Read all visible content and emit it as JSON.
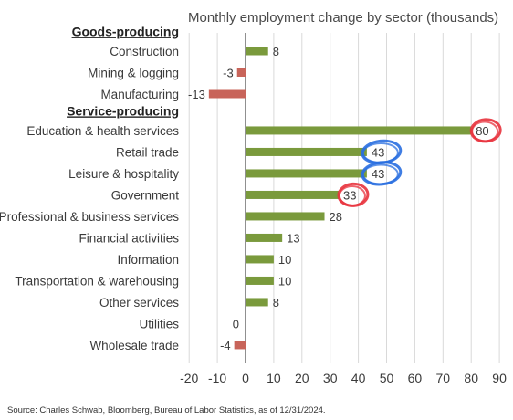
{
  "chart_data": {
    "type": "bar",
    "orientation": "horizontal",
    "title": "Monthly employment change by sector (thousands)",
    "source": "Source: Charles Schwab, Bloomberg, Bureau of Labor Statistics, as of 12/31/2024.",
    "xlim": [
      -20,
      90
    ],
    "x_ticks": [
      -20,
      -10,
      0,
      10,
      20,
      30,
      40,
      50,
      60,
      70,
      80,
      90
    ],
    "grid": "vertical",
    "groups": [
      {
        "label": "Goods-producing",
        "categories": [
          {
            "name": "Construction",
            "value": 8
          },
          {
            "name": "Mining & logging",
            "value": -3
          },
          {
            "name": "Manufacturing",
            "value": -13
          }
        ]
      },
      {
        "label": "Service-producing",
        "categories": [
          {
            "name": "Education & health services",
            "value": 80
          },
          {
            "name": "Retail trade",
            "value": 43
          },
          {
            "name": "Leisure & hospitality",
            "value": 43
          },
          {
            "name": "Government",
            "value": 33
          },
          {
            "name": "Professional & business services",
            "value": 28
          },
          {
            "name": "Financial activities",
            "value": 13
          },
          {
            "name": "Information",
            "value": 10
          },
          {
            "name": "Transportation & warehousing",
            "value": 10
          },
          {
            "name": "Other services",
            "value": 8
          },
          {
            "name": "Utilities",
            "value": 0
          },
          {
            "name": "Wholesale trade",
            "value": -4
          }
        ]
      }
    ],
    "colors": {
      "positive": "#7a9a3c",
      "negative": "#c8645a",
      "grid": "#d9d9d9",
      "annotation_red": "#e8323c",
      "annotation_blue": "#2a6fe0"
    },
    "annotations": [
      {
        "type": "hand-drawn-circle",
        "color": "red",
        "value": 80,
        "category": "Education & health services"
      },
      {
        "type": "hand-drawn-circle",
        "color": "blue",
        "value": 43,
        "category": "Retail trade"
      },
      {
        "type": "hand-drawn-circle",
        "color": "blue",
        "value": 43,
        "category": "Leisure & hospitality"
      },
      {
        "type": "hand-drawn-circle",
        "color": "red",
        "value": 33,
        "category": "Government"
      }
    ]
  }
}
